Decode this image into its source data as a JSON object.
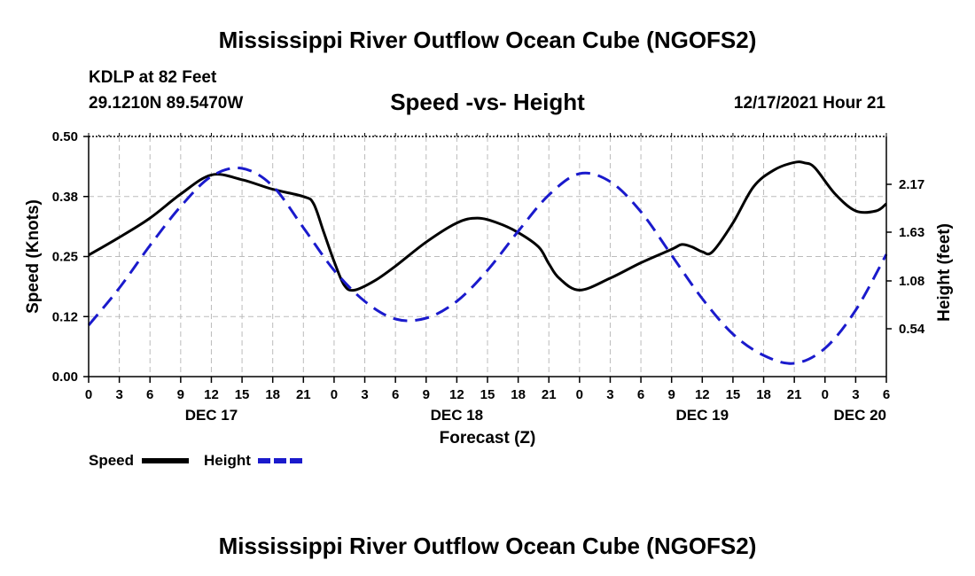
{
  "title": "Mississippi River Outflow Ocean Cube (NGOFS2)",
  "footer_title": "Mississippi River Outflow Ocean Cube (NGOFS2)",
  "station": "KDLP at 82 Feet",
  "location": "29.1210N  89.5470W",
  "subtitle": "Speed -vs- Height",
  "datetime": "12/17/2021 Hour 21",
  "colors": {
    "speed": "#000000",
    "height": "#1a1acc",
    "grid": "#bbbbbb"
  },
  "chart_data": {
    "type": "line",
    "xlabel": "Forecast (Z)",
    "ylabel": "Speed (Knots)",
    "y2label": "Height (feet)",
    "x_range_hours": [
      0,
      78
    ],
    "ylim": [
      0,
      0.5
    ],
    "y_ticks": [
      "0.00",
      "0.12",
      "0.25",
      "0.38",
      "0.50"
    ],
    "y_tick_values": [
      0,
      0.125,
      0.25,
      0.375,
      0.5
    ],
    "y2lim": [
      0,
      2.71
    ],
    "y2_ticks": [
      "0.54",
      "1.08",
      "1.63",
      "2.17"
    ],
    "y2_tick_values": [
      0.54,
      1.08,
      1.63,
      2.17
    ],
    "x_tick_labels": [
      "0",
      "3",
      "6",
      "9",
      "12",
      "15",
      "18",
      "21",
      "0",
      "3",
      "6",
      "9",
      "12",
      "15",
      "18",
      "21",
      "0",
      "3",
      "6",
      "9",
      "12",
      "15",
      "18",
      "21",
      "0",
      "3",
      "6"
    ],
    "x_tick_step_hours": 3,
    "date_labels": [
      {
        "label": "DEC 17",
        "hour": 12
      },
      {
        "label": "DEC 18",
        "hour": 36
      },
      {
        "label": "DEC 19",
        "hour": 60
      },
      {
        "label": "DEC 20",
        "hour": 78
      }
    ],
    "grid": true,
    "series": [
      {
        "name": "Speed",
        "axis": "left",
        "style": "solid",
        "x": [
          0,
          3,
          6,
          9,
          12,
          15,
          18,
          21,
          22,
          23,
          24,
          25,
          26,
          28,
          30,
          33,
          36,
          38,
          40,
          42,
          44,
          45,
          46,
          48,
          51,
          54,
          57,
          58,
          59,
          60,
          61,
          63,
          65,
          67,
          69,
          70,
          71,
          73,
          75,
          77,
          78
        ],
        "values": [
          0.253,
          0.29,
          0.33,
          0.38,
          0.42,
          0.41,
          0.39,
          0.375,
          0.36,
          0.3,
          0.24,
          0.19,
          0.18,
          0.2,
          0.23,
          0.28,
          0.32,
          0.33,
          0.32,
          0.3,
          0.27,
          0.235,
          0.205,
          0.18,
          0.205,
          0.237,
          0.265,
          0.275,
          0.27,
          0.26,
          0.26,
          0.32,
          0.395,
          0.43,
          0.446,
          0.445,
          0.435,
          0.38,
          0.345,
          0.345,
          0.36
        ]
      },
      {
        "name": "Height",
        "axis": "right",
        "style": "dashed",
        "x": [
          0,
          3,
          6,
          9,
          12,
          15,
          18,
          21,
          24,
          27,
          30,
          33,
          36,
          39,
          42,
          45,
          48,
          51,
          54,
          57,
          60,
          63,
          66,
          69,
          72,
          75,
          78
        ],
        "values": [
          0.58,
          1.0,
          1.48,
          1.92,
          2.26,
          2.35,
          2.15,
          1.68,
          1.2,
          0.85,
          0.65,
          0.66,
          0.85,
          1.2,
          1.64,
          2.05,
          2.29,
          2.2,
          1.86,
          1.37,
          0.88,
          0.48,
          0.24,
          0.15,
          0.32,
          0.75,
          1.38
        ]
      }
    ],
    "legend": [
      "Speed",
      "Height"
    ]
  }
}
